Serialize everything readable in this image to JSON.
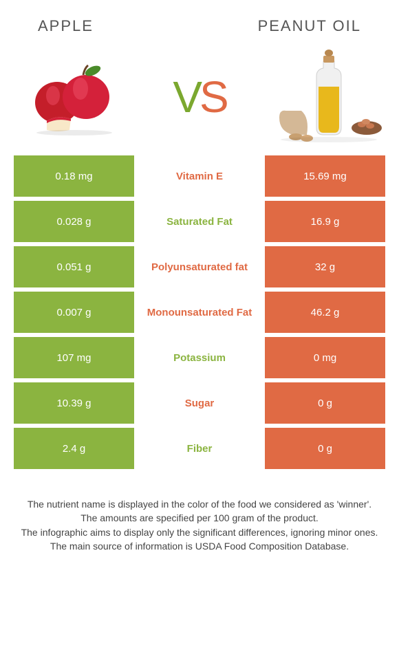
{
  "header": {
    "left_title": "APPLE",
    "right_title": "PEANUT OIL",
    "vs_v": "V",
    "vs_s": "S"
  },
  "colors": {
    "left": "#8bb440",
    "right": "#e06a44",
    "background": "#ffffff",
    "text": "#444444"
  },
  "rows": [
    {
      "left": "0.18 mg",
      "label": "Vitamin E",
      "right": "15.69 mg",
      "winner": "right"
    },
    {
      "left": "0.028 g",
      "label": "Saturated Fat",
      "right": "16.9 g",
      "winner": "left"
    },
    {
      "left": "0.051 g",
      "label": "Polyunsaturated fat",
      "right": "32 g",
      "winner": "right"
    },
    {
      "left": "0.007 g",
      "label": "Monounsaturated Fat",
      "right": "46.2 g",
      "winner": "right"
    },
    {
      "left": "107 mg",
      "label": "Potassium",
      "right": "0 mg",
      "winner": "left"
    },
    {
      "left": "10.39 g",
      "label": "Sugar",
      "right": "0 g",
      "winner": "right"
    },
    {
      "left": "2.4 g",
      "label": "Fiber",
      "right": "0 g",
      "winner": "left"
    }
  ],
  "footnotes": [
    "The nutrient name is displayed in the color of the food we considered as 'winner'.",
    "The amounts are specified per 100 gram of the product.",
    "The infographic aims to display only the significant differences, ignoring minor ones.",
    "The main source of information is USDA Food Composition Database."
  ]
}
